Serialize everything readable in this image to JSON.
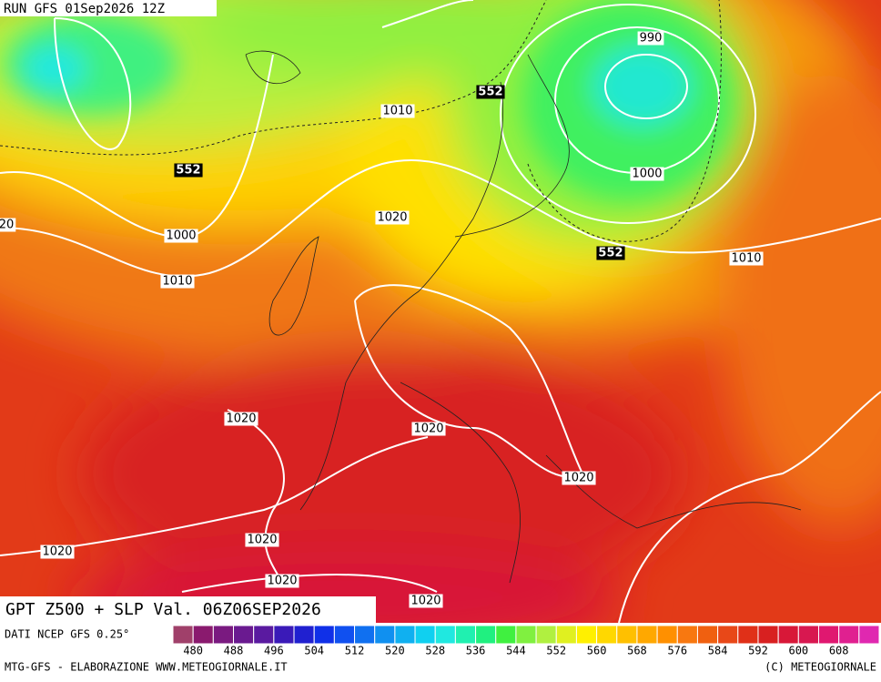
{
  "header": {
    "run": "RUN GFS 01Sep2026 12Z"
  },
  "map": {
    "isobar_labels": [
      "990",
      "1010",
      "1000",
      "1020",
      "20",
      "1000",
      "1010",
      "1010",
      "1020",
      "1020",
      "1020",
      "1020",
      "1020",
      "1020",
      "1020"
    ],
    "height_labels": [
      "552",
      "552",
      "552"
    ]
  },
  "title_bar": {
    "text": "GPT Z500 + SLP Val. 06Z06SEP2026"
  },
  "legend": {
    "source": "DATI NCEP GFS 0.25°",
    "labels": [
      "480",
      "488",
      "496",
      "504",
      "512",
      "520",
      "528",
      "536",
      "544",
      "552",
      "560",
      "568",
      "576",
      "584",
      "592",
      "600",
      "608"
    ],
    "colors": [
      "#a0406a",
      "#8a1a6e",
      "#7a1a80",
      "#6a1a90",
      "#5a1aa0",
      "#3a1ab8",
      "#2020d0",
      "#1030e8",
      "#1050f0",
      "#1070f0",
      "#1090f0",
      "#10b0f0",
      "#10d0f0",
      "#20e8e0",
      "#20f0b0",
      "#20f080",
      "#40f040",
      "#80f040",
      "#b0f040",
      "#e0f020",
      "#fff000",
      "#ffd800",
      "#ffc000",
      "#ffa800",
      "#ff9000",
      "#f87810",
      "#f06010",
      "#e84818",
      "#e03018",
      "#d82020",
      "#d81838",
      "#d81850",
      "#e01870",
      "#e02090",
      "#e028b0"
    ]
  },
  "footer": {
    "left": "MTG-GFS - ELABORAZIONE WWW.METEOGIORNALE.IT",
    "right": "(C) METEOGIORNALE"
  }
}
